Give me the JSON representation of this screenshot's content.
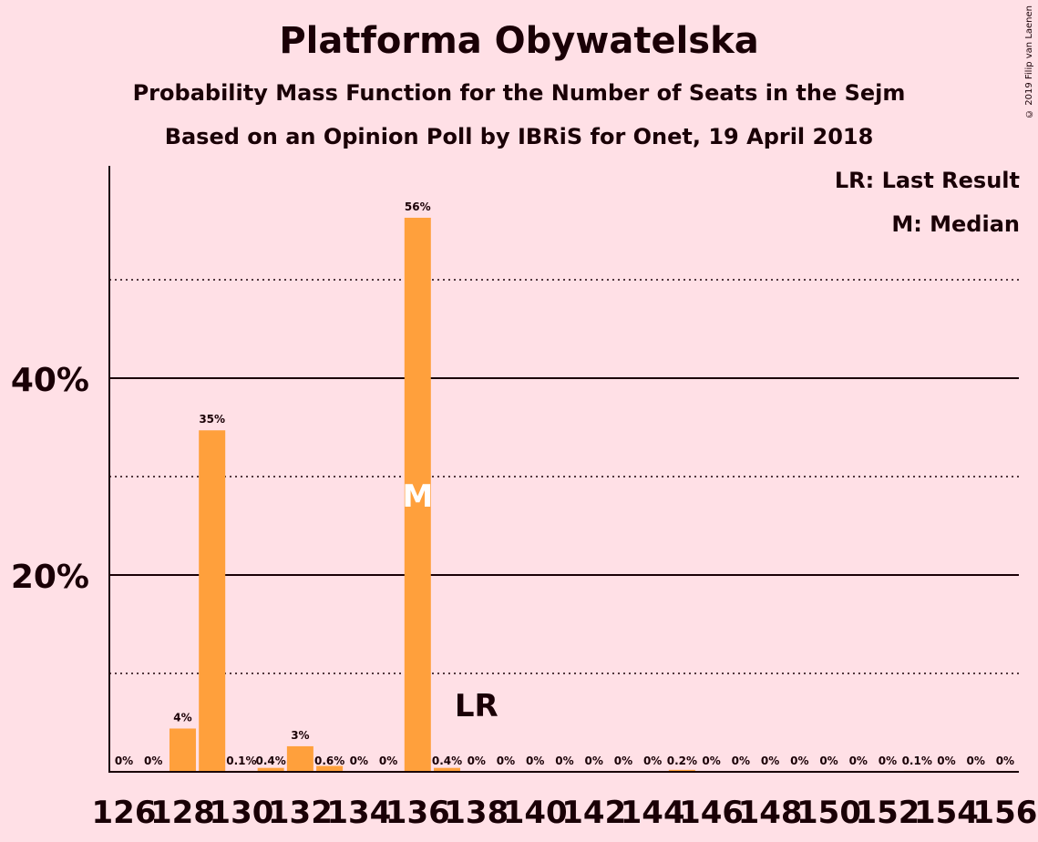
{
  "header": {
    "title": "Platforma Obywatelska",
    "subtitle1": "Probability Mass Function for the Number of Seats in the Sejm",
    "subtitle2": "Based on an Opinion Poll by IBRiS for Onet, 19 April 2018",
    "copyright": "© 2019 Filip van Laenen"
  },
  "legend": {
    "last_result": "LR: Last Result",
    "median": "M: Median"
  },
  "colors": {
    "bar": "#ffa03c",
    "background": "#ffe0e6",
    "text": "#1a0006"
  },
  "chart_data": {
    "type": "bar",
    "categories": [
      126,
      127,
      128,
      129,
      130,
      131,
      132,
      133,
      134,
      135,
      136,
      137,
      138,
      139,
      140,
      141,
      142,
      143,
      144,
      145,
      146,
      147,
      148,
      149,
      150,
      151,
      152,
      153,
      154,
      155,
      156
    ],
    "values": [
      0,
      0,
      4.4,
      34.7,
      0.1,
      0.4,
      2.6,
      0.6,
      0,
      0,
      56.3,
      0.4,
      0,
      0,
      0,
      0,
      0,
      0,
      0,
      0.2,
      0,
      0,
      0,
      0,
      0,
      0,
      0,
      0.1,
      0,
      0,
      0
    ],
    "value_labels": [
      "0%",
      "0%",
      "4%",
      "35%",
      "0.1%",
      "0.4%",
      "3%",
      "0.6%",
      "0%",
      "0%",
      "56%",
      "0.4%",
      "0%",
      "0%",
      "0%",
      "0%",
      "0%",
      "0%",
      "0%",
      "0.2%",
      "0%",
      "0%",
      "0%",
      "0%",
      "0%",
      "0%",
      "0%",
      "0.1%",
      "0%",
      "0%",
      "0%"
    ],
    "x_tick_labels": [
      "126",
      "128",
      "130",
      "132",
      "134",
      "136",
      "138",
      "140",
      "142",
      "144",
      "146",
      "148",
      "150",
      "152",
      "154",
      "156"
    ],
    "y_tick_labels": [
      "20%",
      "40%"
    ],
    "major_gridlines": [
      20,
      40
    ],
    "minor_gridlines": [
      10,
      30,
      50
    ],
    "ylim": [
      0,
      61.6
    ],
    "median": 136,
    "median_label": "M",
    "last_result": 138,
    "last_result_label": "LR"
  }
}
